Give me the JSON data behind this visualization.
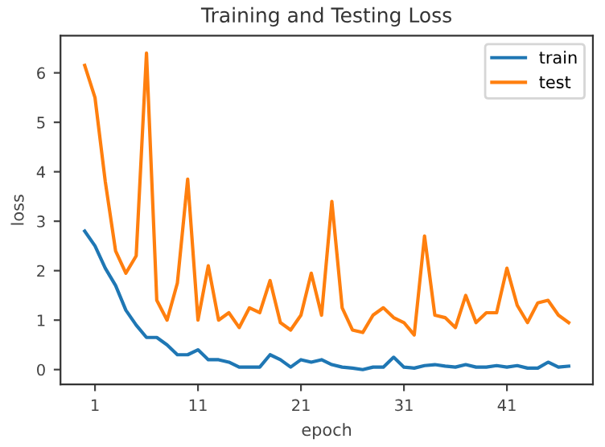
{
  "chart_data": {
    "type": "line",
    "title": "Training and Testing Loss",
    "xlabel": "epoch",
    "ylabel": "loss",
    "x": [
      0,
      1,
      2,
      3,
      4,
      5,
      6,
      7,
      8,
      9,
      10,
      11,
      12,
      13,
      14,
      15,
      16,
      17,
      18,
      19,
      20,
      21,
      22,
      23,
      24,
      25,
      26,
      27,
      28,
      29,
      30,
      31,
      32,
      33,
      34,
      35,
      36,
      37,
      38,
      39,
      40,
      41,
      42,
      43,
      44,
      45,
      46,
      47
    ],
    "series": [
      {
        "name": "train",
        "color": "#1f77b4",
        "values": [
          2.8,
          2.5,
          2.05,
          1.7,
          1.2,
          0.9,
          0.65,
          0.65,
          0.5,
          0.3,
          0.3,
          0.4,
          0.2,
          0.2,
          0.15,
          0.05,
          0.05,
          0.05,
          0.3,
          0.2,
          0.05,
          0.2,
          0.15,
          0.2,
          0.1,
          0.05,
          0.03,
          0.0,
          0.05,
          0.05,
          0.25,
          0.05,
          0.03,
          0.08,
          0.1,
          0.07,
          0.05,
          0.1,
          0.05,
          0.05,
          0.08,
          0.05,
          0.08,
          0.03,
          0.03,
          0.15,
          0.05,
          0.07
        ]
      },
      {
        "name": "test",
        "color": "#ff7f0e",
        "values": [
          6.15,
          5.5,
          3.8,
          2.4,
          1.95,
          2.3,
          6.4,
          1.4,
          1.0,
          1.75,
          3.85,
          1.0,
          2.1,
          1.0,
          1.15,
          0.85,
          1.25,
          1.15,
          1.8,
          0.95,
          0.8,
          1.1,
          1.95,
          1.1,
          3.4,
          1.25,
          0.8,
          0.75,
          1.1,
          1.25,
          1.05,
          0.95,
          0.7,
          2.7,
          1.1,
          1.05,
          0.85,
          1.5,
          0.95,
          1.15,
          1.15,
          2.05,
          1.3,
          0.95,
          1.35,
          1.4,
          1.1,
          0.95
        ]
      }
    ],
    "xlim": [
      -2.35,
      49.35
    ],
    "xticks": [
      1,
      11,
      21,
      31,
      41
    ],
    "ylim": [
      -0.3,
      6.75
    ],
    "yticks": [
      0,
      1,
      2,
      3,
      4,
      5,
      6
    ],
    "grid": false,
    "legend": "top right",
    "marker": "none",
    "line_style": "solid"
  }
}
